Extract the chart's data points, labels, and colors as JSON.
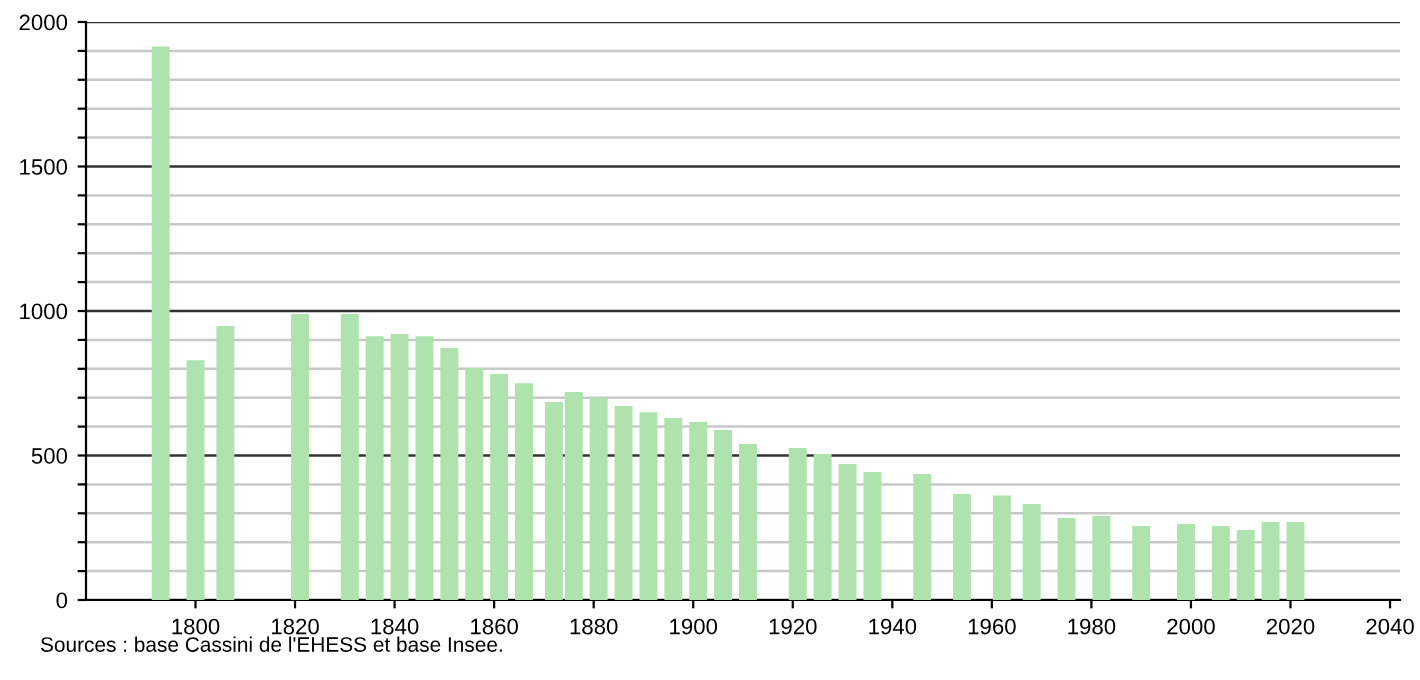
{
  "chart_data": {
    "type": "bar",
    "x": [
      1793,
      1800,
      1806,
      1821,
      1831,
      1836,
      1841,
      1846,
      1851,
      1856,
      1861,
      1866,
      1872,
      1876,
      1881,
      1886,
      1891,
      1896,
      1901,
      1906,
      1911,
      1921,
      1926,
      1931,
      1936,
      1946,
      1954,
      1962,
      1968,
      1975,
      1982,
      1990,
      1999,
      2006,
      2011,
      2016,
      2021
    ],
    "values": [
      1915,
      830,
      948,
      990,
      990,
      913,
      920,
      913,
      872,
      803,
      782,
      750,
      685,
      720,
      699,
      671,
      650,
      630,
      616,
      588,
      540,
      526,
      505,
      471,
      443,
      436,
      367,
      362,
      332,
      284,
      291,
      256,
      263,
      256,
      242,
      270,
      270
    ],
    "color": "#aee3ae",
    "xlim": [
      1778,
      2042
    ],
    "xticks": [
      1800,
      1820,
      1840,
      1860,
      1880,
      1900,
      1920,
      1940,
      1960,
      1980,
      2000,
      2020,
      2040
    ],
    "ylim": [
      0,
      2000
    ],
    "yticks": [
      0,
      {
        "value": 100,
        "label": null
      },
      {
        "value": 200,
        "label": null
      },
      {
        "value": 300,
        "label": null
      },
      {
        "value": 400,
        "label": null
      },
      500,
      {
        "value": 600,
        "label": null
      },
      {
        "value": 700,
        "label": null
      },
      {
        "value": 800,
        "label": null
      },
      {
        "value": 900,
        "label": null
      },
      1000,
      {
        "value": 1100,
        "label": null
      },
      {
        "value": 1200,
        "label": null
      },
      {
        "value": 1300,
        "label": null
      },
      {
        "value": 1400,
        "label": null
      },
      1500,
      {
        "value": 1600,
        "label": null
      },
      {
        "value": 1700,
        "label": null
      },
      {
        "value": 1800,
        "label": null
      },
      {
        "value": 1900,
        "label": null
      },
      2000
    ],
    "grid": "y",
    "annotations": [
      "Sources : base Cassini de l'EHESS et base Insee."
    ]
  }
}
